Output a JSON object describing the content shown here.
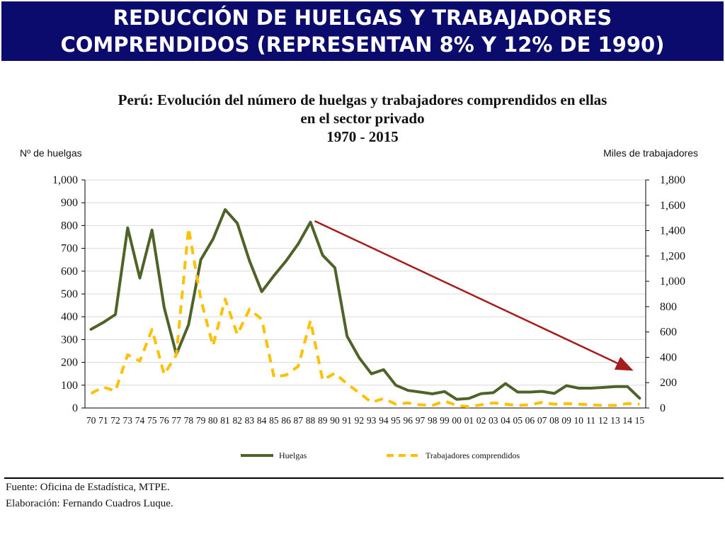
{
  "banner": {
    "line1": "REDUCCIÓN DE HUELGAS Y TRABAJADORES",
    "line2": "COMPRENDIDOS (REPRESENTAN 8% Y 12% DE 1990)",
    "background": "#0b0b6e"
  },
  "footer": {
    "source": "Fuente: Oficina de Estadística, MTPE.",
    "author": "Elaboración: Fernando Cuadros Luque."
  },
  "chart_data": {
    "type": "line",
    "title_lines": [
      "Perú: Evolución del número de huelgas y trabajadores comprendidos en ellas",
      "en el sector privado",
      "1970 - 2015"
    ],
    "ylabel_left": "Nº de huelgas",
    "ylabel_right": "Miles de trabajadores",
    "ylim_left": [
      0,
      1000
    ],
    "ylim_right": [
      0,
      1800
    ],
    "yticks_left": [
      "0",
      "100",
      "200",
      "300",
      "400",
      "500",
      "600",
      "700",
      "800",
      "900",
      "1,000"
    ],
    "yticks_right": [
      "0",
      "200",
      "400",
      "600",
      "800",
      "1,000",
      "1,200",
      "1,400",
      "1,600",
      "1,800"
    ],
    "categories": [
      "70",
      "71",
      "72",
      "73",
      "74",
      "75",
      "76",
      "77",
      "78",
      "79",
      "80",
      "81",
      "82",
      "83",
      "84",
      "85",
      "86",
      "87",
      "88",
      "89",
      "90",
      "91",
      "92",
      "93",
      "94",
      "95",
      "96",
      "97",
      "98",
      "99",
      "00",
      "01",
      "02",
      "03",
      "04",
      "05",
      "06",
      "07",
      "08",
      "09",
      "10",
      "11",
      "12",
      "13",
      "14",
      "15"
    ],
    "grid": true,
    "legend_position": "bottom",
    "series": [
      {
        "name": "Huelgas",
        "axis": "left",
        "color": "#4f6228",
        "style": "solid",
        "values": [
          345,
          375,
          410,
          790,
          570,
          780,
          440,
          235,
          365,
          650,
          740,
          870,
          810,
          645,
          510,
          580,
          645,
          720,
          815,
          670,
          615,
          315,
          220,
          150,
          168,
          100,
          77,
          70,
          62,
          72,
          38,
          42,
          63,
          67,
          107,
          70,
          70,
          73,
          64,
          98,
          87,
          87,
          90,
          94,
          94,
          43
        ]
      },
      {
        "name": "Trabajadores comprendidos",
        "axis": "right",
        "color": "#ffc000",
        "style": "dashed",
        "values": [
          115,
          165,
          135,
          420,
          370,
          620,
          265,
          420,
          1420,
          860,
          490,
          860,
          580,
          780,
          700,
          245,
          260,
          330,
          690,
          220,
          275,
          190,
          120,
          45,
          75,
          30,
          40,
          25,
          20,
          55,
          20,
          10,
          25,
          40,
          30,
          20,
          25,
          45,
          30,
          35,
          30,
          25,
          20,
          20,
          35,
          30
        ]
      }
    ],
    "annotation": {
      "type": "arrow",
      "color": "#a51c1c",
      "from": {
        "x": "88",
        "y_left": 820
      },
      "to": {
        "x": "14",
        "y_left": 170
      }
    }
  }
}
